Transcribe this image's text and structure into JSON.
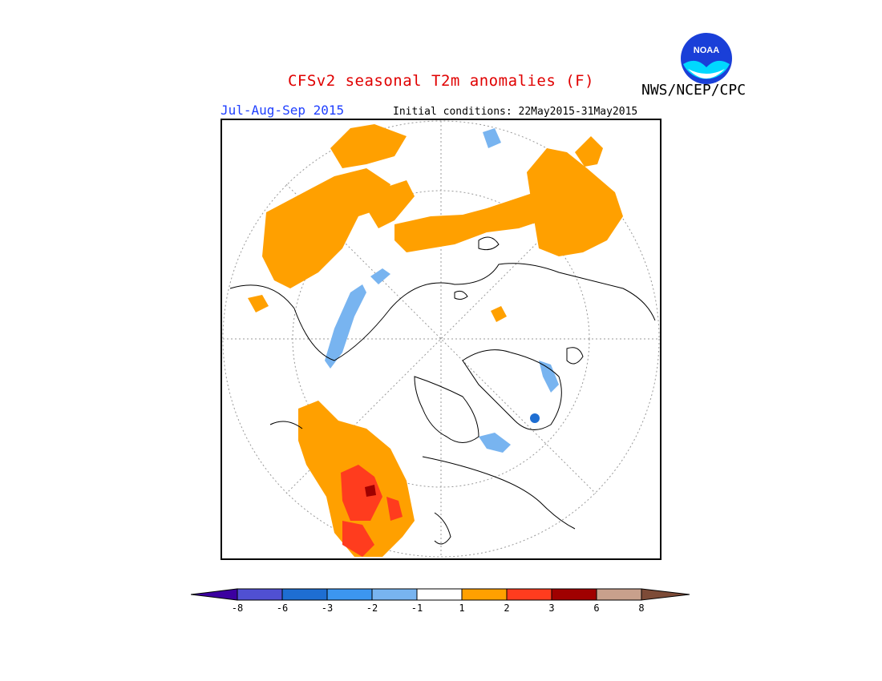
{
  "header": {
    "title": "CFSv2 seasonal T2m anomalies (F)",
    "agency": "NWS/NCEP/CPC",
    "season": "Jul-Aug-Sep 2015",
    "initial_conditions": "Initial conditions: 22May2015-31May2015",
    "logo_text": "NOAA"
  },
  "colors": {
    "title": "#e00000",
    "season": "#2040ff",
    "warm1": "#ffa000",
    "warm2": "#ff3c1e",
    "warm3": "#a00000",
    "cool1": "#78b4f0",
    "cool2": "#3c96f0",
    "cool3": "#1e6ed2"
  },
  "legend": {
    "labels": [
      "-8",
      "-6",
      "-3",
      "-2",
      "-1",
      "1",
      "2",
      "3",
      "6",
      "8"
    ],
    "bins": [
      {
        "color": "#3c00a0"
      },
      {
        "color": "#5050d2"
      },
      {
        "color": "#1e6ed2"
      },
      {
        "color": "#3c96f0"
      },
      {
        "color": "#78b4f0"
      },
      {
        "color": "#ffffff"
      },
      {
        "color": "#ffa000"
      },
      {
        "color": "#ff3c1e"
      },
      {
        "color": "#a00000"
      },
      {
        "color": "#c8a08c"
      },
      {
        "color": "#7d4b37"
      }
    ]
  }
}
